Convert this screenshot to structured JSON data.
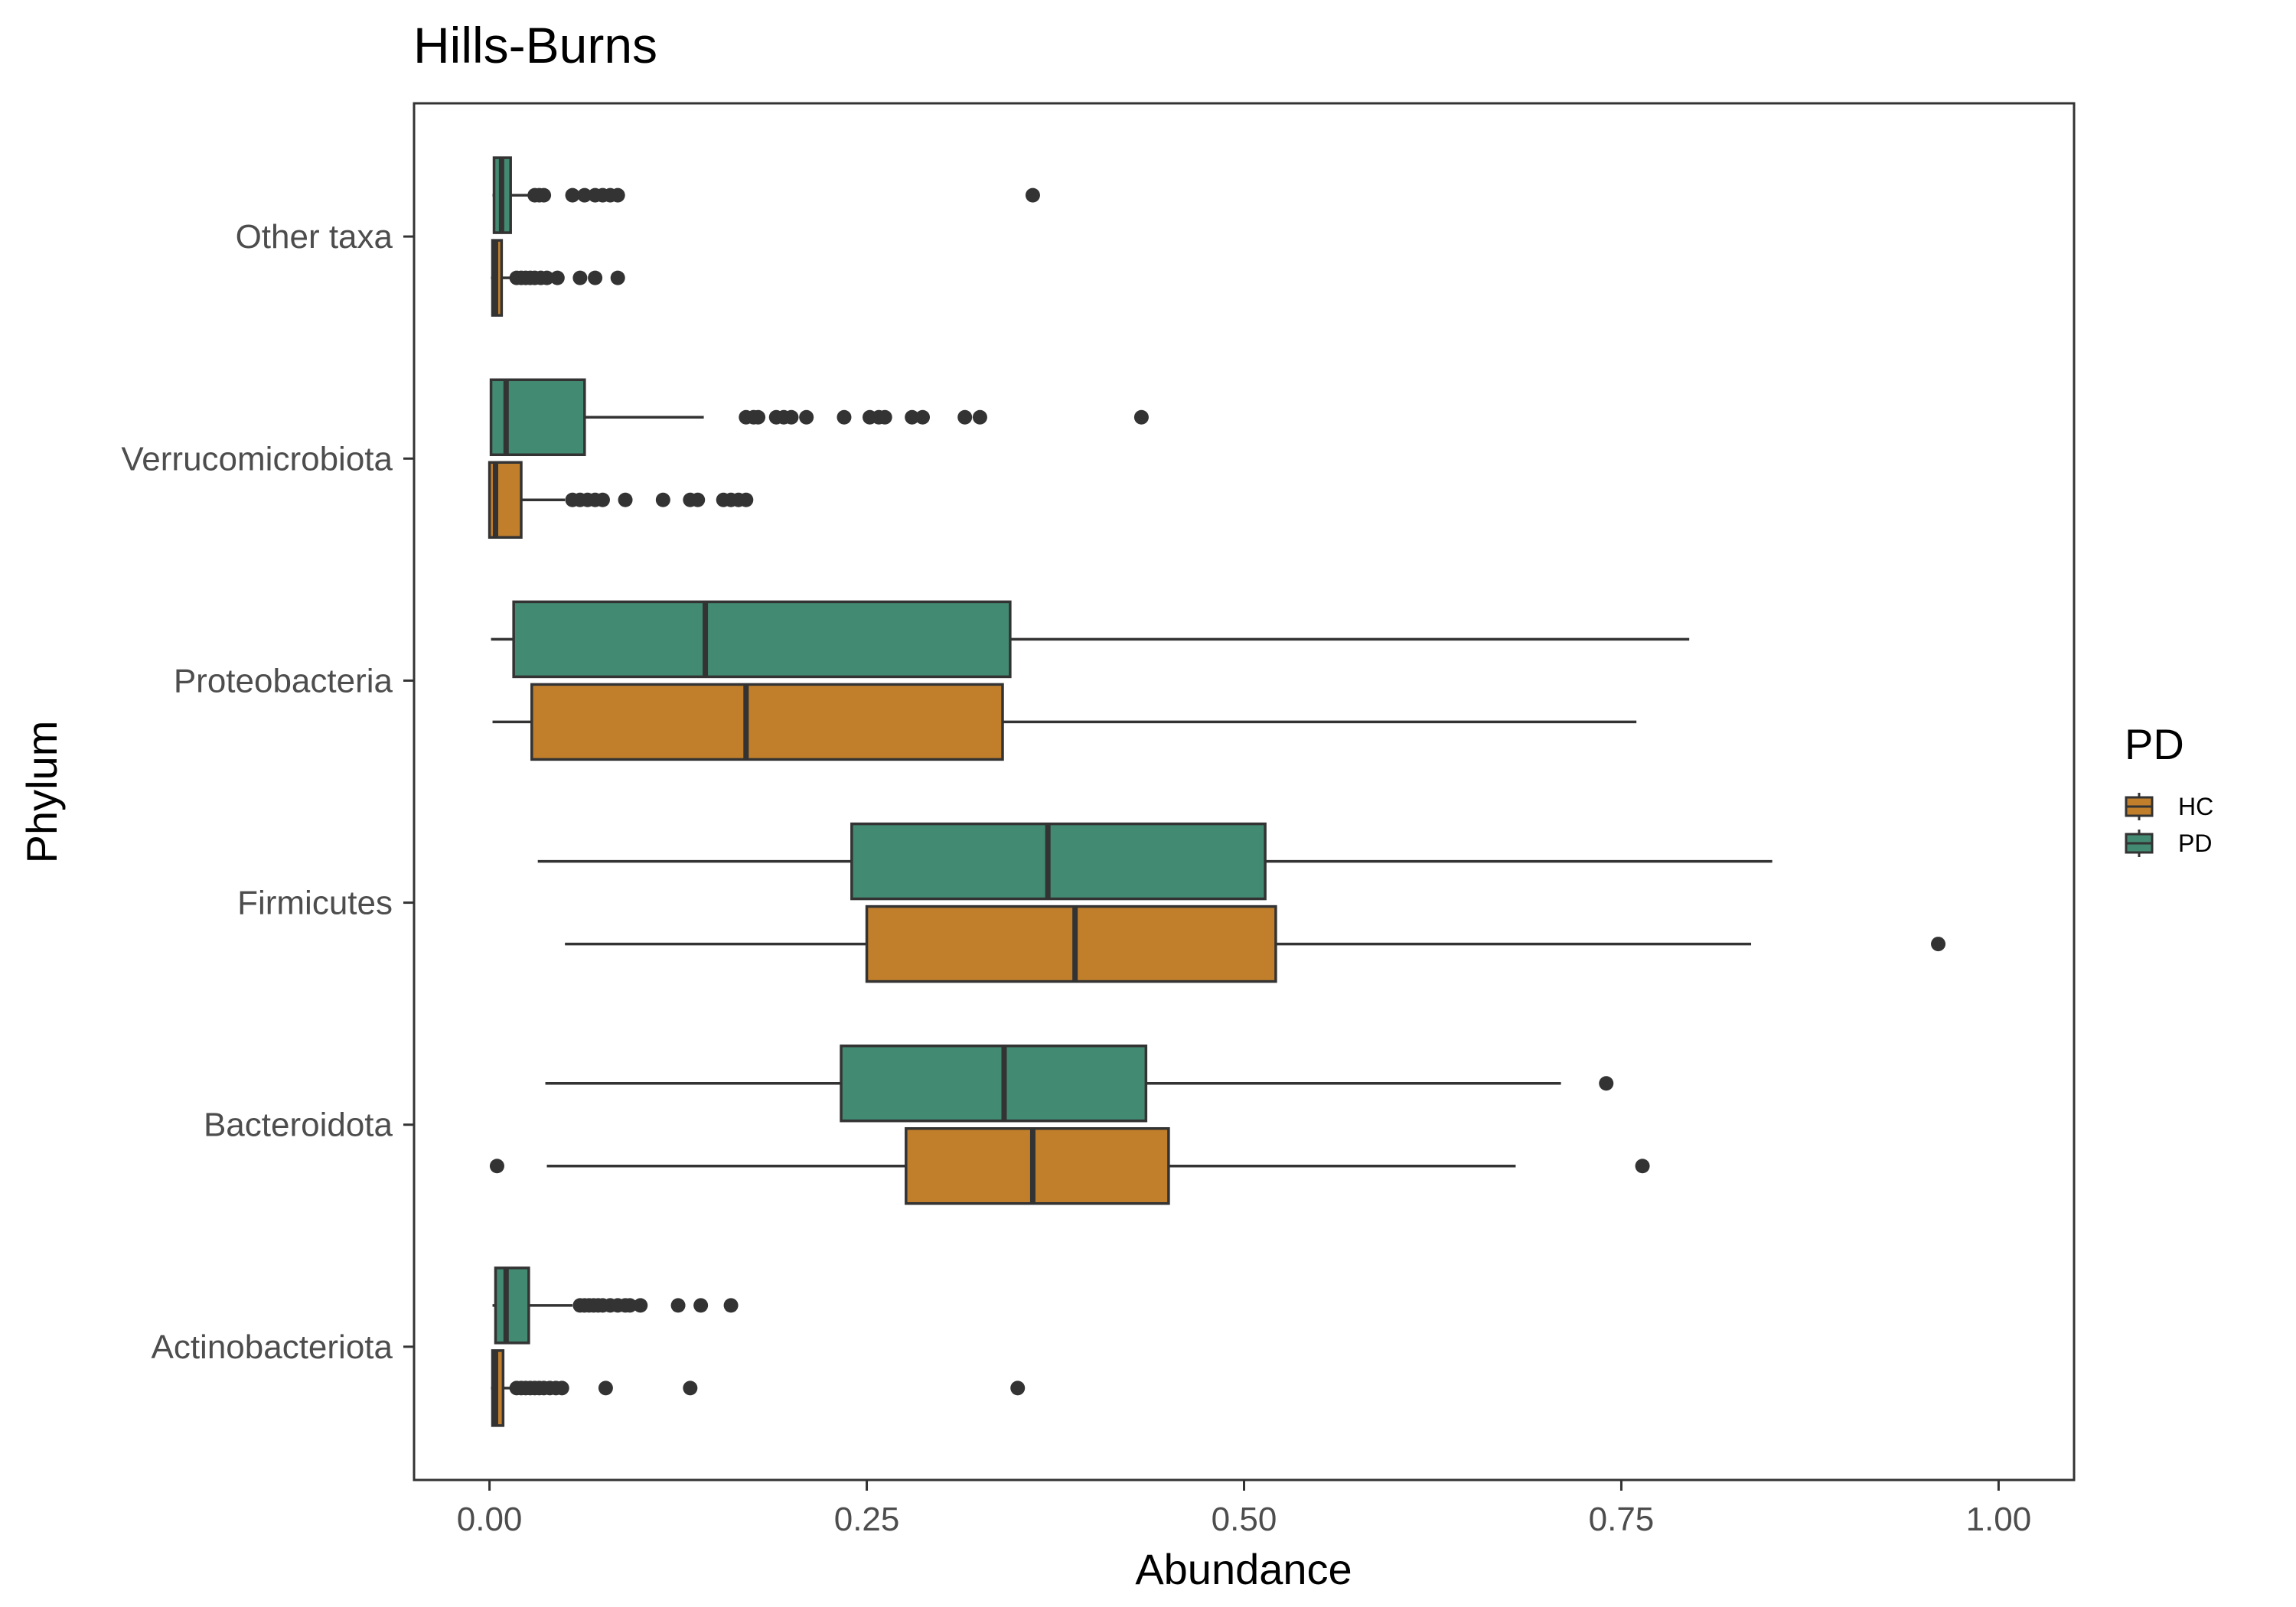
{
  "chart_data": {
    "type": "boxplot",
    "orientation": "horizontal",
    "title": "Hills-Burns",
    "xlabel": "Abundance",
    "ylabel": "Phylum",
    "xlim": [
      -0.05,
      1.05
    ],
    "xticks": [
      {
        "value": 0,
        "label": "0.00"
      },
      {
        "value": 0.25,
        "label": "0.25"
      },
      {
        "value": 0.5,
        "label": "0.50"
      },
      {
        "value": 0.75,
        "label": "0.75"
      },
      {
        "value": 1,
        "label": "1.00"
      }
    ],
    "categories": [
      "Actinobacteriota",
      "Bacteroidota",
      "Firmicutes",
      "Proteobacteria",
      "Verrucomicrobiota",
      "Other taxa"
    ],
    "grid": false,
    "legend": {
      "title": "PD",
      "position": "right",
      "entries": [
        {
          "label": "HC",
          "color": "#c17f2c"
        },
        {
          "label": "PD",
          "color": "#438a72"
        }
      ]
    },
    "series": [
      {
        "name": "PD",
        "color": "#438a72",
        "boxes": [
          {
            "category": "Actinobacteriota",
            "whisker_low": 0.002,
            "q1": 0.004,
            "median": 0.011,
            "q3": 0.026,
            "whisker_high": 0.055,
            "outliers": [
              0.06,
              0.063,
              0.066,
              0.069,
              0.072,
              0.075,
              0.08,
              0.085,
              0.09,
              0.093,
              0.1,
              0.125,
              0.14,
              0.16
            ]
          },
          {
            "category": "Bacteroidota",
            "whisker_low": 0.037,
            "q1": 0.233,
            "median": 0.341,
            "q3": 0.435,
            "whisker_high": 0.71,
            "outliers": [
              0.74
            ]
          },
          {
            "category": "Firmicutes",
            "whisker_low": 0.032,
            "q1": 0.24,
            "median": 0.37,
            "q3": 0.514,
            "whisker_high": 0.85,
            "outliers": []
          },
          {
            "category": "Proteobacteria",
            "whisker_low": 0.001,
            "q1": 0.016,
            "median": 0.143,
            "q3": 0.345,
            "whisker_high": 0.795,
            "outliers": []
          },
          {
            "category": "Verrucomicrobiota",
            "whisker_low": 0.001,
            "q1": 0.001,
            "median": 0.011,
            "q3": 0.063,
            "whisker_high": 0.142,
            "outliers": [
              0.17,
              0.175,
              0.178,
              0.19,
              0.195,
              0.2,
              0.21,
              0.235,
              0.252,
              0.258,
              0.262,
              0.28,
              0.287,
              0.315,
              0.325,
              0.432
            ]
          },
          {
            "category": "Other taxa",
            "whisker_low": 0.002,
            "q1": 0.003,
            "median": 0.008,
            "q3": 0.014,
            "whisker_high": 0.028,
            "outliers": [
              0.03,
              0.033,
              0.036,
              0.055,
              0.063,
              0.07,
              0.075,
              0.08,
              0.085,
              0.36
            ]
          }
        ]
      },
      {
        "name": "HC",
        "color": "#c17f2c",
        "boxes": [
          {
            "category": "Actinobacteriota",
            "whisker_low": 0.001,
            "q1": 0.002,
            "median": 0.004,
            "q3": 0.009,
            "whisker_high": 0.016,
            "outliers": [
              0.018,
              0.021,
              0.024,
              0.027,
              0.03,
              0.033,
              0.036,
              0.04,
              0.044,
              0.048,
              0.077,
              0.133,
              0.35
            ]
          },
          {
            "category": "Bacteroidota",
            "whisker_low": 0.038,
            "q1": 0.276,
            "median": 0.36,
            "q3": 0.45,
            "whisker_high": 0.68,
            "outliers": [
              0.005,
              0.764
            ]
          },
          {
            "category": "Firmicutes",
            "whisker_low": 0.05,
            "q1": 0.25,
            "median": 0.388,
            "q3": 0.521,
            "whisker_high": 0.836,
            "outliers": [
              0.96
            ]
          },
          {
            "category": "Proteobacteria",
            "whisker_low": 0.002,
            "q1": 0.028,
            "median": 0.17,
            "q3": 0.34,
            "whisker_high": 0.76,
            "outliers": []
          },
          {
            "category": "Verrucomicrobiota",
            "whisker_low": 0.0,
            "q1": 0.0,
            "median": 0.004,
            "q3": 0.021,
            "whisker_high": 0.05,
            "outliers": [
              0.055,
              0.06,
              0.065,
              0.07,
              0.075,
              0.09,
              0.115,
              0.133,
              0.138,
              0.155,
              0.16,
              0.165,
              0.17
            ]
          },
          {
            "category": "Other taxa",
            "whisker_low": 0.001,
            "q1": 0.002,
            "median": 0.004,
            "q3": 0.008,
            "whisker_high": 0.015,
            "outliers": [
              0.018,
              0.021,
              0.024,
              0.027,
              0.03,
              0.034,
              0.038,
              0.045,
              0.06,
              0.07,
              0.085
            ]
          }
        ]
      }
    ]
  }
}
